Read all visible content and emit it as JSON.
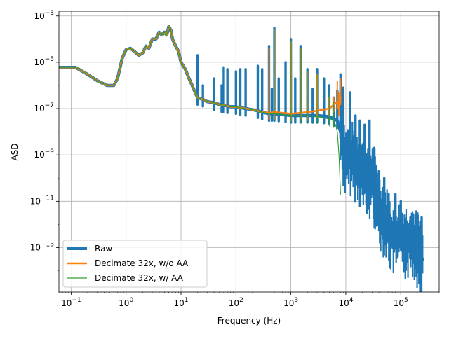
{
  "chart_data": {
    "type": "line",
    "title": "",
    "xlabel": "Frequency (Hz)",
    "ylabel": "ASD",
    "xscale": "log",
    "yscale": "log",
    "xlim": [
      0.06,
      500000
    ],
    "ylim": [
      1.2e-15,
      0.0016
    ],
    "grid": true,
    "legend_position": "lower-left",
    "x_ticks": [
      {
        "value": 0.1,
        "base": "10",
        "exp": "−1"
      },
      {
        "value": 1,
        "base": "10",
        "exp": "0"
      },
      {
        "value": 10,
        "base": "10",
        "exp": "1"
      },
      {
        "value": 100,
        "base": "10",
        "exp": "2"
      },
      {
        "value": 1000,
        "base": "10",
        "exp": "3"
      },
      {
        "value": 10000,
        "base": "10",
        "exp": "4"
      },
      {
        "value": 100000,
        "base": "10",
        "exp": "5"
      }
    ],
    "y_ticks": [
      {
        "value": 1e-13,
        "base": "10",
        "exp": "−13"
      },
      {
        "value": 1e-11,
        "base": "10",
        "exp": "−11"
      },
      {
        "value": 1e-09,
        "base": "10",
        "exp": "−9"
      },
      {
        "value": 1e-07,
        "base": "10",
        "exp": "−7"
      },
      {
        "value": 1e-05,
        "base": "10",
        "exp": "−5"
      },
      {
        "value": 0.001,
        "base": "10",
        "exp": "−3"
      }
    ],
    "series": [
      {
        "name": "Raw",
        "color": "#1f77b4",
        "line_width": "thick",
        "x": [
          0.06,
          0.12,
          0.2,
          0.3,
          0.45,
          0.6,
          0.7,
          0.85,
          1.0,
          1.2,
          1.4,
          1.7,
          2.0,
          2.3,
          2.6,
          3.0,
          3.5,
          4.0,
          4.5,
          5.0,
          5.5,
          6.0,
          6.5,
          7.0,
          8.0,
          9.0,
          10,
          12,
          14,
          16,
          18,
          20,
          25,
          30,
          40,
          50,
          60,
          70,
          80,
          100,
          120,
          150,
          200,
          250,
          300,
          400,
          500,
          700,
          1000,
          1500,
          2000,
          3000,
          5000,
          7000,
          8000,
          9000,
          10000,
          12000,
          15000,
          20000,
          25000,
          30000,
          40000,
          50000,
          70000,
          100000,
          130000,
          160000,
          200000,
          250000
        ],
        "y": [
          6e-06,
          6e-06,
          3e-06,
          1.6e-06,
          1e-06,
          1e-06,
          2e-06,
          1.5e-05,
          3.5e-05,
          4e-05,
          3e-05,
          2e-05,
          2.5e-05,
          5e-05,
          4e-05,
          0.0001,
          0.0001,
          0.0002,
          0.00015,
          0.0002,
          0.00015,
          0.00035,
          0.00025,
          0.0001,
          5e-05,
          3e-05,
          1e-05,
          5e-06,
          2e-06,
          1e-06,
          5e-07,
          3e-07,
          2.5e-07,
          2e-07,
          1.8e-07,
          1.5e-07,
          1.4e-07,
          1.3e-07,
          1.2e-07,
          1.2e-07,
          1.1e-07,
          1e-07,
          9e-08,
          8e-08,
          7e-08,
          6e-08,
          6e-08,
          5.5e-08,
          5e-08,
          5e-08,
          5e-08,
          5e-08,
          4.5e-08,
          3e-08,
          1e-08,
          2e-09,
          5e-10,
          1e-09,
          5e-10,
          2e-10,
          5e-11,
          1e-10,
          5e-12,
          2e-12,
          3e-13,
          3e-13,
          2e-13,
          3e-13,
          1e-13,
          3e-14
        ],
        "peaks": [
          {
            "x": 20,
            "y": 2e-05
          },
          {
            "x": 25,
            "y": 1e-06
          },
          {
            "x": 40,
            "y": 2e-06
          },
          {
            "x": 55,
            "y": 1e-06
          },
          {
            "x": 60,
            "y": 6e-06
          },
          {
            "x": 70,
            "y": 5e-06
          },
          {
            "x": 100,
            "y": 4e-06
          },
          {
            "x": 120,
            "y": 5e-06
          },
          {
            "x": 150,
            "y": 5e-06
          },
          {
            "x": 250,
            "y": 7e-06
          },
          {
            "x": 300,
            "y": 5e-06
          },
          {
            "x": 400,
            "y": 5e-05
          },
          {
            "x": 450,
            "y": 7e-07
          },
          {
            "x": 500,
            "y": 0.0003
          },
          {
            "x": 600,
            "y": 2e-06
          },
          {
            "x": 800,
            "y": 1e-05
          },
          {
            "x": 1000,
            "y": 0.0001
          },
          {
            "x": 1200,
            "y": 2e-06
          },
          {
            "x": 1500,
            "y": 5e-05
          },
          {
            "x": 2000,
            "y": 5e-06
          },
          {
            "x": 2500,
            "y": 7e-07
          },
          {
            "x": 3000,
            "y": 5e-06
          },
          {
            "x": 4000,
            "y": 2e-06
          },
          {
            "x": 5000,
            "y": 1e-06
          },
          {
            "x": 6000,
            "y": 3e-07
          },
          {
            "x": 7000,
            "y": 6e-07
          },
          {
            "x": 8000,
            "y": 3e-06
          },
          {
            "x": 9000,
            "y": 8e-07
          },
          {
            "x": 12000,
            "y": 5e-07
          },
          {
            "x": 15000,
            "y": 5e-08
          },
          {
            "x": 18000,
            "y": 3e-08
          },
          {
            "x": 22000,
            "y": 2e-08
          },
          {
            "x": 27000,
            "y": 3e-08
          },
          {
            "x": 33000,
            "y": 2e-09
          },
          {
            "x": 40000,
            "y": 2e-10
          },
          {
            "x": 50000,
            "y": 1e-10
          },
          {
            "x": 60000,
            "y": 2e-11
          },
          {
            "x": 80000,
            "y": 2e-11
          },
          {
            "x": 100000,
            "y": 1e-11
          },
          {
            "x": 150000,
            "y": 2e-12
          },
          {
            "x": 200000,
            "y": 3e-12
          },
          {
            "x": 240000,
            "y": 2e-12
          }
        ]
      },
      {
        "name": "Decimate 32x, w/o AA",
        "color": "#ff7f0e",
        "line_width": "medium",
        "x": [
          0.06,
          0.12,
          0.2,
          0.3,
          0.45,
          0.6,
          0.7,
          0.85,
          1.0,
          1.2,
          1.4,
          1.7,
          2.0,
          2.3,
          2.6,
          3.0,
          3.5,
          4.0,
          4.5,
          5.0,
          5.5,
          6.0,
          6.5,
          7.0,
          8.0,
          9.0,
          10,
          12,
          14,
          16,
          18,
          20,
          25,
          30,
          40,
          50,
          60,
          70,
          80,
          100,
          120,
          150,
          200,
          250,
          300,
          400,
          500,
          700,
          1000,
          1500,
          2000,
          3000,
          5000,
          7000,
          7500,
          8000
        ],
        "y": [
          6e-06,
          6e-06,
          3e-06,
          1.6e-06,
          1e-06,
          1e-06,
          2e-06,
          1.5e-05,
          3.5e-05,
          4e-05,
          3e-05,
          2e-05,
          2.5e-05,
          5e-05,
          4e-05,
          0.0001,
          0.0001,
          0.0002,
          0.00015,
          0.0002,
          0.00015,
          0.00035,
          0.00025,
          0.0001,
          5e-05,
          3e-05,
          1e-05,
          5e-06,
          2e-06,
          1e-06,
          5e-07,
          3e-07,
          2.5e-07,
          2e-07,
          1.8e-07,
          1.5e-07,
          1.4e-07,
          1.3e-07,
          1.2e-07,
          1.2e-07,
          1.1e-07,
          1e-07,
          9e-08,
          8e-08,
          7e-08,
          6.5e-08,
          7e-08,
          6.5e-08,
          6e-08,
          6.5e-08,
          7e-08,
          8e-08,
          1e-07,
          2e-07,
          1e-07,
          3e-07
        ],
        "peaks": [
          {
            "x": 500,
            "y": 0.00025
          },
          {
            "x": 1000,
            "y": 8e-05
          },
          {
            "x": 1500,
            "y": 4e-05
          },
          {
            "x": 400,
            "y": 4e-05
          },
          {
            "x": 2000,
            "y": 4e-06
          },
          {
            "x": 3000,
            "y": 3e-06
          },
          {
            "x": 5000,
            "y": 3e-07
          },
          {
            "x": 6000,
            "y": 3e-07
          },
          {
            "x": 7000,
            "y": 1.5e-06
          },
          {
            "x": 7500,
            "y": 5e-07
          },
          {
            "x": 8000,
            "y": 2e-06
          }
        ]
      },
      {
        "name": "Decimate 32x, w/ AA",
        "color": "#2ca02c",
        "line_width": "thin",
        "x": [
          0.06,
          0.12,
          0.2,
          0.3,
          0.45,
          0.6,
          0.7,
          0.85,
          1.0,
          1.2,
          1.4,
          1.7,
          2.0,
          2.3,
          2.6,
          3.0,
          3.5,
          4.0,
          4.5,
          5.0,
          5.5,
          6.0,
          6.5,
          7.0,
          8.0,
          9.0,
          10,
          12,
          14,
          16,
          18,
          20,
          25,
          30,
          40,
          50,
          60,
          70,
          80,
          100,
          120,
          150,
          200,
          250,
          300,
          400,
          500,
          700,
          1000,
          1500,
          2000,
          3000,
          4000,
          5000,
          6000,
          6500,
          7000,
          7500,
          7800,
          8000
        ],
        "y": [
          6e-06,
          6e-06,
          3e-06,
          1.6e-06,
          1e-06,
          1e-06,
          2e-06,
          1.5e-05,
          3.5e-05,
          4e-05,
          3e-05,
          2e-05,
          2.5e-05,
          5e-05,
          4e-05,
          0.0001,
          0.0001,
          0.0002,
          0.00015,
          0.0002,
          0.00015,
          0.00035,
          0.00025,
          0.0001,
          5e-05,
          3e-05,
          1e-05,
          5e-06,
          2e-06,
          1e-06,
          5e-07,
          3e-07,
          2.5e-07,
          2e-07,
          1.8e-07,
          1.5e-07,
          1.4e-07,
          1.3e-07,
          1.2e-07,
          1.2e-07,
          1.1e-07,
          1e-07,
          9e-08,
          8e-08,
          7e-08,
          6e-08,
          6e-08,
          5.5e-08,
          5e-08,
          5e-08,
          5e-08,
          4.5e-08,
          4e-08,
          3.5e-08,
          3e-08,
          2e-08,
          1e-08,
          1e-09,
          1e-10,
          2e-11
        ],
        "peaks": [
          {
            "x": 500,
            "y": 0.00025
          },
          {
            "x": 1000,
            "y": 8e-05
          },
          {
            "x": 1500,
            "y": 4e-05
          },
          {
            "x": 400,
            "y": 4e-05
          },
          {
            "x": 2000,
            "y": 4e-06
          },
          {
            "x": 3000,
            "y": 3e-06
          },
          {
            "x": 5000,
            "y": 5e-07
          },
          {
            "x": 6000,
            "y": 2e-07
          }
        ]
      }
    ]
  }
}
